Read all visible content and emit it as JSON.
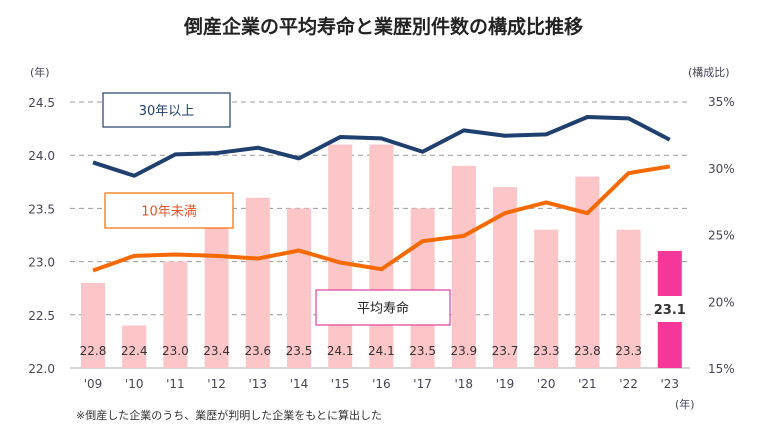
{
  "chart_data": {
    "type": "bar+line",
    "title": "倒産企業の平均寿命と業歴別件数の構成比推移",
    "left_axis_unit": "(年)",
    "right_axis_unit": "(構成比)",
    "x_unit": "(年)",
    "categories": [
      "'09",
      "'10",
      "'11",
      "'12",
      "'13",
      "'14",
      "'15",
      "'16",
      "'17",
      "'18",
      "'19",
      "'20",
      "'21",
      "'22",
      "'23"
    ],
    "left_ylim": [
      22.0,
      24.5
    ],
    "left_ticks": [
      "22.0",
      "22.5",
      "23.0",
      "23.5",
      "24.0",
      "24.5"
    ],
    "right_ylim": [
      15,
      35
    ],
    "right_ticks": [
      "15%",
      "20%",
      "25%",
      "30%",
      "35%"
    ],
    "bars": {
      "name": "平均寿命",
      "values": [
        22.8,
        22.4,
        23.0,
        23.4,
        23.6,
        23.5,
        24.1,
        24.1,
        23.5,
        23.9,
        23.7,
        23.3,
        23.8,
        23.3,
        23.1
      ],
      "color": "#fcc5c8",
      "highlight_color": "#f5379a"
    },
    "series": [
      {
        "name": "30年以上",
        "color": "#1f3f6e",
        "values": [
          30.4,
          29.4,
          31.0,
          31.1,
          31.5,
          30.7,
          32.3,
          32.2,
          31.2,
          32.8,
          32.4,
          32.5,
          33.8,
          33.7,
          32.1
        ]
      },
      {
        "name": "10年未満",
        "color": "#f56a00",
        "values": [
          22.3,
          23.4,
          23.5,
          23.4,
          23.2,
          23.8,
          22.9,
          22.4,
          24.5,
          24.9,
          26.6,
          27.4,
          26.6,
          29.6,
          30.1
        ]
      }
    ],
    "grid": true
  },
  "footnote": "※倒産した企業のうち、業歴が判明した企業をもとに算出した"
}
